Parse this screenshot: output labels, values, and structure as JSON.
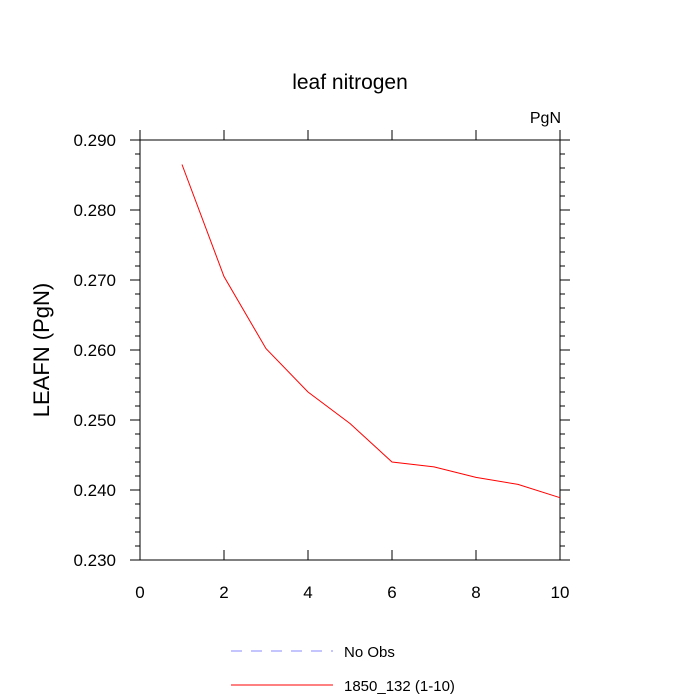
{
  "chart_data": {
    "type": "line",
    "title": "leaf nitrogen",
    "units": "PgN",
    "xlabel": "",
    "ylabel": "LEAFN  (PgN)",
    "xlim": [
      0,
      10
    ],
    "ylim": [
      0.23,
      0.29
    ],
    "x_ticks": [
      0,
      2,
      4,
      6,
      8,
      10
    ],
    "x_tick_labels": [
      "0",
      "2",
      "4",
      "6",
      "8",
      "10"
    ],
    "y_ticks": [
      0.23,
      0.24,
      0.25,
      0.26,
      0.27,
      0.28,
      0.29
    ],
    "y_tick_labels": [
      "0.230",
      "0.240",
      "0.250",
      "0.260",
      "0.270",
      "0.280",
      "0.290"
    ],
    "series": [
      {
        "name": "1850_132 (1-10)",
        "color": "#ff0000",
        "style": "solid",
        "x": [
          1,
          2,
          3,
          4,
          5,
          6,
          7,
          8,
          9,
          10
        ],
        "y": [
          0.2865,
          0.2705,
          0.2602,
          0.254,
          0.2495,
          0.244,
          0.2433,
          0.2418,
          0.2408,
          0.2389
        ]
      }
    ],
    "legend": [
      {
        "label": "No Obs",
        "color": "#8888ff",
        "style": "dashed"
      },
      {
        "label": "1850_132 (1-10)",
        "color": "#ff0000",
        "style": "solid"
      }
    ]
  }
}
